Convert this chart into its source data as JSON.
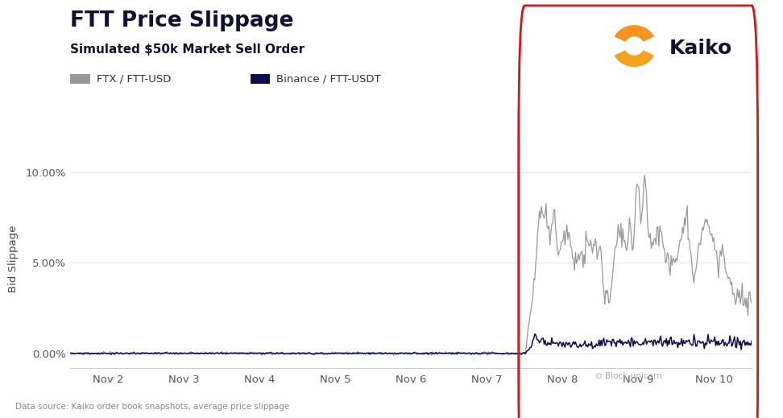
{
  "title": "FTT Price Slippage",
  "subtitle": "Simulated $50k Market Sell Order",
  "ylabel": "Bid Slippage",
  "ytick_labels": [
    "0.00%",
    "5.00%",
    "10.00%"
  ],
  "ytick_vals": [
    0.0,
    0.05,
    0.1
  ],
  "ylim": [
    -0.008,
    0.112
  ],
  "xtick_labels": [
    "Nov 2",
    "Nov 3",
    "Nov 4",
    "Nov 5",
    "Nov 6",
    "Nov 7",
    "Nov 8",
    "Nov 9",
    "Nov 10"
  ],
  "legend_ftx": "FTX / FTT-USD",
  "legend_binance": "Binance / FTT-USDT",
  "ftx_color": "#999999",
  "binance_color": "#0d0d4d",
  "background_color": "#ffffff",
  "grid_color": "#e8e8e8",
  "title_color": "#111133",
  "subtitle_color": "#111133",
  "data_source_text": "Data source: Kaiko order book snapshots, average price slippage",
  "rect_color": "#dd1111",
  "kaiko_color": "#111133",
  "kaiko_orange1": "#F7941D",
  "kaiko_orange2": "#F4A21C",
  "n_days": 9,
  "pts_per_day": 80,
  "seed": 42
}
